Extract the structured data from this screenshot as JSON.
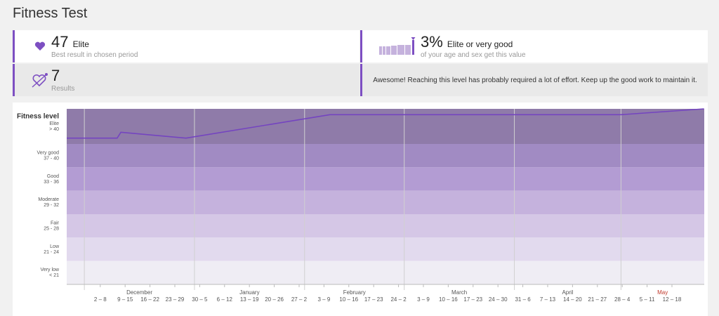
{
  "header": {
    "title": "Fitness Test"
  },
  "summary": {
    "best": {
      "value": "47",
      "level": "Elite",
      "caption": "Best result in chosen period"
    },
    "share": {
      "value": "3%",
      "text": "Elite or very good",
      "caption": "of your age and sex get this value"
    },
    "results": {
      "value": "7",
      "caption": "Results"
    },
    "message": "Awesome! Reaching this level has probably required a lot of effort. Keep up the good work to maintain it."
  },
  "chart_data": {
    "type": "line",
    "y_label": "Fitness level",
    "ylim": [
      17,
      47
    ],
    "xlim": [
      -0.35,
      25.3
    ],
    "bands": [
      {
        "name": "Elite",
        "range": "> 40",
        "from": 41,
        "to": 47,
        "color": "#8f7ba9"
      },
      {
        "name": "Very good",
        "range": "37 - 40",
        "from": 37,
        "to": 41,
        "color": "#a18bc3"
      },
      {
        "name": "Good",
        "range": "33 - 36",
        "from": 33,
        "to": 37,
        "color": "#b39cd3"
      },
      {
        "name": "Moderate",
        "range": "29 - 32",
        "from": 29,
        "to": 33,
        "color": "#c5b2dd"
      },
      {
        "name": "Fair",
        "range": "25 - 28",
        "from": 25,
        "to": 29,
        "color": "#d5c7e6"
      },
      {
        "name": "Low",
        "range": "21 - 24",
        "from": 21,
        "to": 25,
        "color": "#e2daee"
      },
      {
        "name": "Very low",
        "range": "< 21",
        "from": 17,
        "to": 21,
        "color": "#efedf4"
      }
    ],
    "series": [
      {
        "color": "#7444c0",
        "x": [
          -0.35,
          1.68,
          1.83,
          4.45,
          10.24,
          21.95,
          25.29
        ],
        "values": [
          42,
          42,
          43,
          42,
          46,
          46,
          47
        ]
      }
    ],
    "months": [
      {
        "label": "December",
        "start": 0.36
      },
      {
        "label": "January",
        "start": 4.79
      },
      {
        "label": "February",
        "start": 9.22
      },
      {
        "label": "March",
        "start": 13.23
      },
      {
        "label": "April",
        "start": 17.66
      },
      {
        "label": "May",
        "start": 21.95
      }
    ],
    "current_month_index": 5,
    "current_month_color": "#c0392b",
    "xticks": [
      {
        "value": 1,
        "label": "2 – 8"
      },
      {
        "value": 2,
        "label": "9 – 15"
      },
      {
        "value": 3,
        "label": "16 – 22"
      },
      {
        "value": 4,
        "label": "23 – 29"
      },
      {
        "value": 5,
        "label": "30 – 5"
      },
      {
        "value": 6,
        "label": "6 – 12"
      },
      {
        "value": 7,
        "label": "13 – 19"
      },
      {
        "value": 8,
        "label": "20 – 26"
      },
      {
        "value": 9,
        "label": "27 – 2"
      },
      {
        "value": 10,
        "label": "3 – 9"
      },
      {
        "value": 11,
        "label": "10 – 16"
      },
      {
        "value": 12,
        "label": "17 – 23"
      },
      {
        "value": 13,
        "label": "24 – 2"
      },
      {
        "value": 14,
        "label": "3 – 9"
      },
      {
        "value": 15,
        "label": "10 – 16"
      },
      {
        "value": 16,
        "label": "17 – 23"
      },
      {
        "value": 17,
        "label": "24 – 30"
      },
      {
        "value": 18,
        "label": "31 – 6"
      },
      {
        "value": 19,
        "label": "7 – 13"
      },
      {
        "value": 20,
        "label": "14 – 20"
      },
      {
        "value": 21,
        "label": "21 – 27"
      },
      {
        "value": 22,
        "label": "28 – 4"
      },
      {
        "value": 23,
        "label": "5 – 11"
      },
      {
        "value": 24,
        "label": "12 – 18"
      }
    ]
  }
}
